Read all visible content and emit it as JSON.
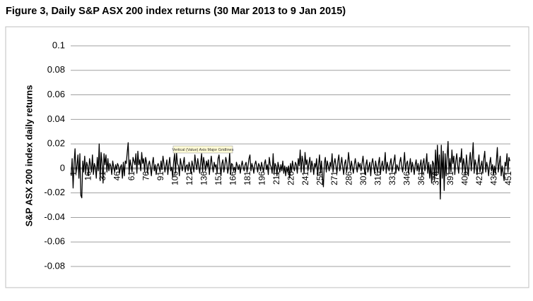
{
  "chart_data": {
    "type": "line",
    "title": "Figure 3, Daily S&P ASX 200 index returns (30 Mar 2013 to 9 Jan 2015)",
    "y_label": "S&P ASX 200 index daily returns",
    "tooltip": "Vertical (Value) Axis Major Gridlines",
    "ylim": [
      -0.08,
      0.1
    ],
    "yticks": [
      0.1,
      0.08,
      0.06,
      0.04,
      0.02,
      0,
      -0.02,
      -0.04,
      -0.06,
      -0.08
    ],
    "grid": true,
    "color": "#000000",
    "categories": [
      "1",
      null,
      null,
      null,
      null,
      null,
      null,
      null,
      null,
      null,
      null,
      null,
      null,
      null,
      null,
      "16",
      null,
      null,
      null,
      null,
      null,
      null,
      null,
      null,
      null,
      null,
      null,
      null,
      null,
      null,
      "31",
      null,
      null,
      null,
      null,
      null,
      null,
      null,
      null,
      null,
      null,
      null,
      null,
      null,
      null,
      "46",
      null,
      null,
      null,
      null,
      null,
      null,
      null,
      null,
      null,
      null,
      null,
      null,
      null,
      null,
      "61",
      null,
      null,
      null,
      null,
      null,
      null,
      null,
      null,
      null,
      null,
      null,
      null,
      null,
      null,
      "76",
      null,
      null,
      null,
      null,
      null,
      null,
      null,
      null,
      null,
      null,
      null,
      null,
      null,
      null,
      "91",
      null,
      null,
      null,
      null,
      null,
      null,
      null,
      null,
      null,
      null,
      null,
      null,
      null,
      null,
      "106",
      null,
      null,
      null,
      null,
      null,
      null,
      null,
      null,
      null,
      null,
      null,
      null,
      null,
      null,
      "121",
      null,
      null,
      null,
      null,
      null,
      null,
      null,
      null,
      null,
      null,
      null,
      null,
      null,
      null,
      "136",
      null,
      null,
      null,
      null,
      null,
      null,
      null,
      null,
      null,
      null,
      null,
      null,
      null,
      null,
      "151",
      null,
      null,
      null,
      null,
      null,
      null,
      null,
      null,
      null,
      null,
      null,
      null,
      null,
      null,
      "166",
      null,
      null,
      null,
      null,
      null,
      null,
      null,
      null,
      null,
      null,
      null,
      null,
      null,
      null,
      "181",
      null,
      null,
      null,
      null,
      null,
      null,
      null,
      null,
      null,
      null,
      null,
      null,
      null,
      null,
      "196",
      null,
      null,
      null,
      null,
      null,
      null,
      null,
      null,
      null,
      null,
      null,
      null,
      null,
      null,
      "211",
      null,
      null,
      null,
      null,
      null,
      null,
      null,
      null,
      null,
      null,
      null,
      null,
      null,
      null,
      "226",
      null,
      null,
      null,
      null,
      null,
      null,
      null,
      null,
      null,
      null,
      null,
      null,
      null,
      null,
      "241",
      null,
      null,
      null,
      null,
      null,
      null,
      null,
      null,
      null,
      null,
      null,
      null,
      null,
      null,
      "256",
      null,
      null,
      null,
      null,
      null,
      null,
      null,
      null,
      null,
      null,
      null,
      null,
      null,
      null,
      "271",
      null,
      null,
      null,
      null,
      null,
      null,
      null,
      null,
      null,
      null,
      null,
      null,
      null,
      null,
      "286",
      null,
      null,
      null,
      null,
      null,
      null,
      null,
      null,
      null,
      null,
      null,
      null,
      null,
      null,
      "301",
      null,
      null,
      null,
      null,
      null,
      null,
      null,
      null,
      null,
      null,
      null,
      null,
      null,
      null,
      "316",
      null,
      null,
      null,
      null,
      null,
      null,
      null,
      null,
      null,
      null,
      null,
      null,
      null,
      null,
      "331",
      null,
      null,
      null,
      null,
      null,
      null,
      null,
      null,
      null,
      null,
      null,
      null,
      null,
      null,
      "346",
      null,
      null,
      null,
      null,
      null,
      null,
      null,
      null,
      null,
      null,
      null,
      null,
      null,
      null,
      "361",
      null,
      null,
      null,
      null,
      null,
      null,
      null,
      null,
      null,
      null,
      null,
      null,
      null,
      null,
      "376",
      null,
      null,
      null,
      null,
      null,
      null,
      null,
      null,
      null,
      null,
      null,
      null,
      null,
      null,
      "391",
      null,
      null,
      null,
      null,
      null,
      null,
      null,
      null,
      null,
      null,
      null,
      null,
      null,
      null,
      "406",
      null,
      null,
      null,
      null,
      null,
      null,
      null,
      null,
      null,
      null,
      null,
      null,
      null,
      null,
      "421",
      null,
      null,
      null,
      null,
      null,
      null,
      null,
      null,
      null,
      null,
      null,
      null,
      null,
      null,
      "436",
      null,
      null,
      null,
      null,
      null,
      null,
      null,
      null,
      null,
      null,
      null,
      null,
      null,
      null,
      "451",
      null,
      null,
      null,
      null
    ],
    "values": [
      -0.006,
      0.008,
      -0.016,
      0.004,
      0.016,
      -0.004,
      0.002,
      0.011,
      -0.008,
      0.012,
      -0.022,
      -0.024,
      0.006,
      -0.003,
      0.01,
      -0.004,
      0.005,
      0.002,
      -0.006,
      0.008,
      0.003,
      -0.003,
      0.011,
      -0.005,
      0.004,
      0.001,
      -0.008,
      0.009,
      -0.002,
      0.02,
      -0.01,
      0.013,
      0.004,
      -0.012,
      0.012,
      0.003,
      0.011,
      -0.003,
      0.008,
      -0.002,
      0.004,
      0.002,
      -0.005,
      0.006,
      0.001,
      -0.003,
      0.003,
      -0.001,
      0.004,
      0.002,
      -0.004,
      0.001,
      0.003,
      -0.008,
      0.005,
      -0.006,
      0.006,
      0.004,
      0.013,
      0.021,
      -0.004,
      0.007,
      0.002,
      -0.003,
      0.009,
      0.006,
      0.003,
      0.012,
      -0.004,
      0.014,
      0.003,
      0.007,
      -0.002,
      0.013,
      0.004,
      0.008,
      -0.003,
      0.009,
      0.005,
      -0.004,
      0.003,
      0.006,
      0.001,
      -0.006,
      0.004,
      0.009,
      -0.002,
      0.003,
      -0.005,
      0.002,
      0.004,
      0.001,
      -0.003,
      0.006,
      -0.001,
      0.01,
      0.004,
      -0.003,
      0.002,
      0.007,
      -0.005,
      0.003,
      0.009,
      -0.002,
      0.001,
      -0.007,
      0.005,
      0.012,
      -0.004,
      0.013,
      0.004,
      0.002,
      -0.006,
      0.008,
      0.003,
      -0.002,
      0.004,
      0.009,
      -0.003,
      0.002,
      0.003,
      -0.002,
      0.005,
      0.001,
      -0.004,
      0.006,
      0.002,
      -0.003,
      0.011,
      0.004,
      -0.001,
      0.008,
      0.002,
      -0.004,
      0.005,
      0.012,
      -0.003,
      0.009,
      0.004,
      -0.002,
      0.006,
      0.001,
      0.007,
      -0.005,
      0.003,
      0.01,
      0.002,
      -0.003,
      0.005,
      0.001,
      0.003,
      -0.004,
      0.008,
      0.011,
      0.002,
      -0.006,
      0.004,
      0.007,
      -0.003,
      0.002,
      0.009,
      0.005,
      -0.004,
      0.001,
      0.013,
      -0.005,
      0.004,
      0.003,
      -0.002,
      0.001,
      -0.003,
      0.005,
      0.002,
      -0.001,
      0.003,
      -0.004,
      0.002,
      0.006,
      0.001,
      -0.002,
      0.003,
      0.005,
      -0.003,
      0.002,
      0.008,
      0.011,
      -0.002,
      0.004,
      0.001,
      -0.004,
      0.003,
      0.006,
      0.002,
      -0.003,
      0.004,
      0.002,
      -0.002,
      0.005,
      0.001,
      -0.003,
      0.004,
      0.007,
      -0.001,
      0.003,
      -0.005,
      0.009,
      0.003,
      0.001,
      -0.004,
      0.012,
      -0.004,
      0.004,
      0.002,
      -0.006,
      0.005,
      0.001,
      -0.003,
      0.003,
      -0.002,
      0.006,
      -0.004,
      0.002,
      -0.006,
      0.001,
      -0.003,
      0.002,
      -0.008,
      0.004,
      -0.003,
      0.006,
      0.001,
      -0.002,
      0.005,
      0.003,
      -0.004,
      0.008,
      0.002,
      0.015,
      -0.003,
      0.01,
      0.005,
      -0.004,
      0.013,
      0.003,
      0.007,
      -0.002,
      0.004,
      0.009,
      -0.003,
      0.006,
      0.002,
      -0.005,
      0.004,
      0.001,
      0.008,
      -0.006,
      0.003,
      0.011,
      -0.004,
      0.006,
      -0.007,
      -0.015,
      0.004,
      0.009,
      -0.003,
      0.006,
      0.002,
      -0.002,
      0.005,
      0.001,
      0.012,
      -0.003,
      0.004,
      0.008,
      0.002,
      -0.004,
      0.006,
      0.011,
      -0.002,
      0.003,
      0.009,
      0.001,
      -0.005,
      0.004,
      0.007,
      -0.003,
      0.002,
      0.013,
      0.005,
      -0.002,
      0.006,
      0.001,
      -0.004,
      0.003,
      0.008,
      0.002,
      -0.003,
      0.005,
      0.001,
      0.004,
      -0.002,
      0.004,
      0.01,
      0.002,
      -0.005,
      0.003,
      0.007,
      -0.003,
      0.001,
      0.005,
      -0.006,
      0.004,
      0.008,
      0.002,
      -0.004,
      0.006,
      0.001,
      -0.003,
      0.004,
      0.009,
      -0.005,
      0.002,
      0.006,
      -0.002,
      0.003,
      0.013,
      -0.004,
      0.005,
      0.001,
      -0.002,
      0.004,
      0.008,
      -0.003,
      0.002,
      0.006,
      0.011,
      -0.004,
      0.003,
      0.001,
      -0.002,
      0.005,
      0.009,
      0.002,
      -0.003,
      0.004,
      0.013,
      -0.002,
      0.004,
      0.006,
      -0.004,
      0.002,
      0.008,
      -0.003,
      0.005,
      0.001,
      -0.005,
      0.003,
      0.007,
      -0.002,
      0.004,
      -0.003,
      0.002,
      0.007,
      -0.006,
      0.004,
      0.008,
      -0.002,
      0.003,
      0.012,
      -0.004,
      0.005,
      -0.008,
      0.003,
      -0.012,
      0.006,
      0.004,
      -0.01,
      0.015,
      -0.006,
      0.019,
      -0.004,
      0.011,
      -0.025,
      0.019,
      -0.008,
      0.014,
      -0.018,
      0.012,
      -0.006,
      0.009,
      0.022,
      -0.004,
      0.008,
      -0.003,
      0.015,
      0.004,
      0.01,
      -0.005,
      0.006,
      0.012,
      0.002,
      -0.004,
      0.009,
      0.005,
      0.016,
      -0.003,
      0.008,
      0.003,
      -0.005,
      0.011,
      0.002,
      -0.006,
      0.006,
      0.013,
      -0.002,
      0.008,
      0.021,
      -0.004,
      0.007,
      0.003,
      -0.005,
      0.004,
      0.011,
      -0.003,
      0.002,
      0.006,
      -0.004,
      0.008,
      0.014,
      -0.003,
      0.005,
      0.001,
      -0.006,
      0.004,
      0.009,
      -0.002,
      0.003,
      -0.005,
      0.002,
      -0.004,
      0.006,
      0.017,
      -0.003,
      0.004,
      0.01,
      -0.006,
      0.002,
      -0.004,
      -0.01,
      0.005,
      0.002,
      0.012,
      -0.003,
      0.009,
      0.006
    ]
  }
}
